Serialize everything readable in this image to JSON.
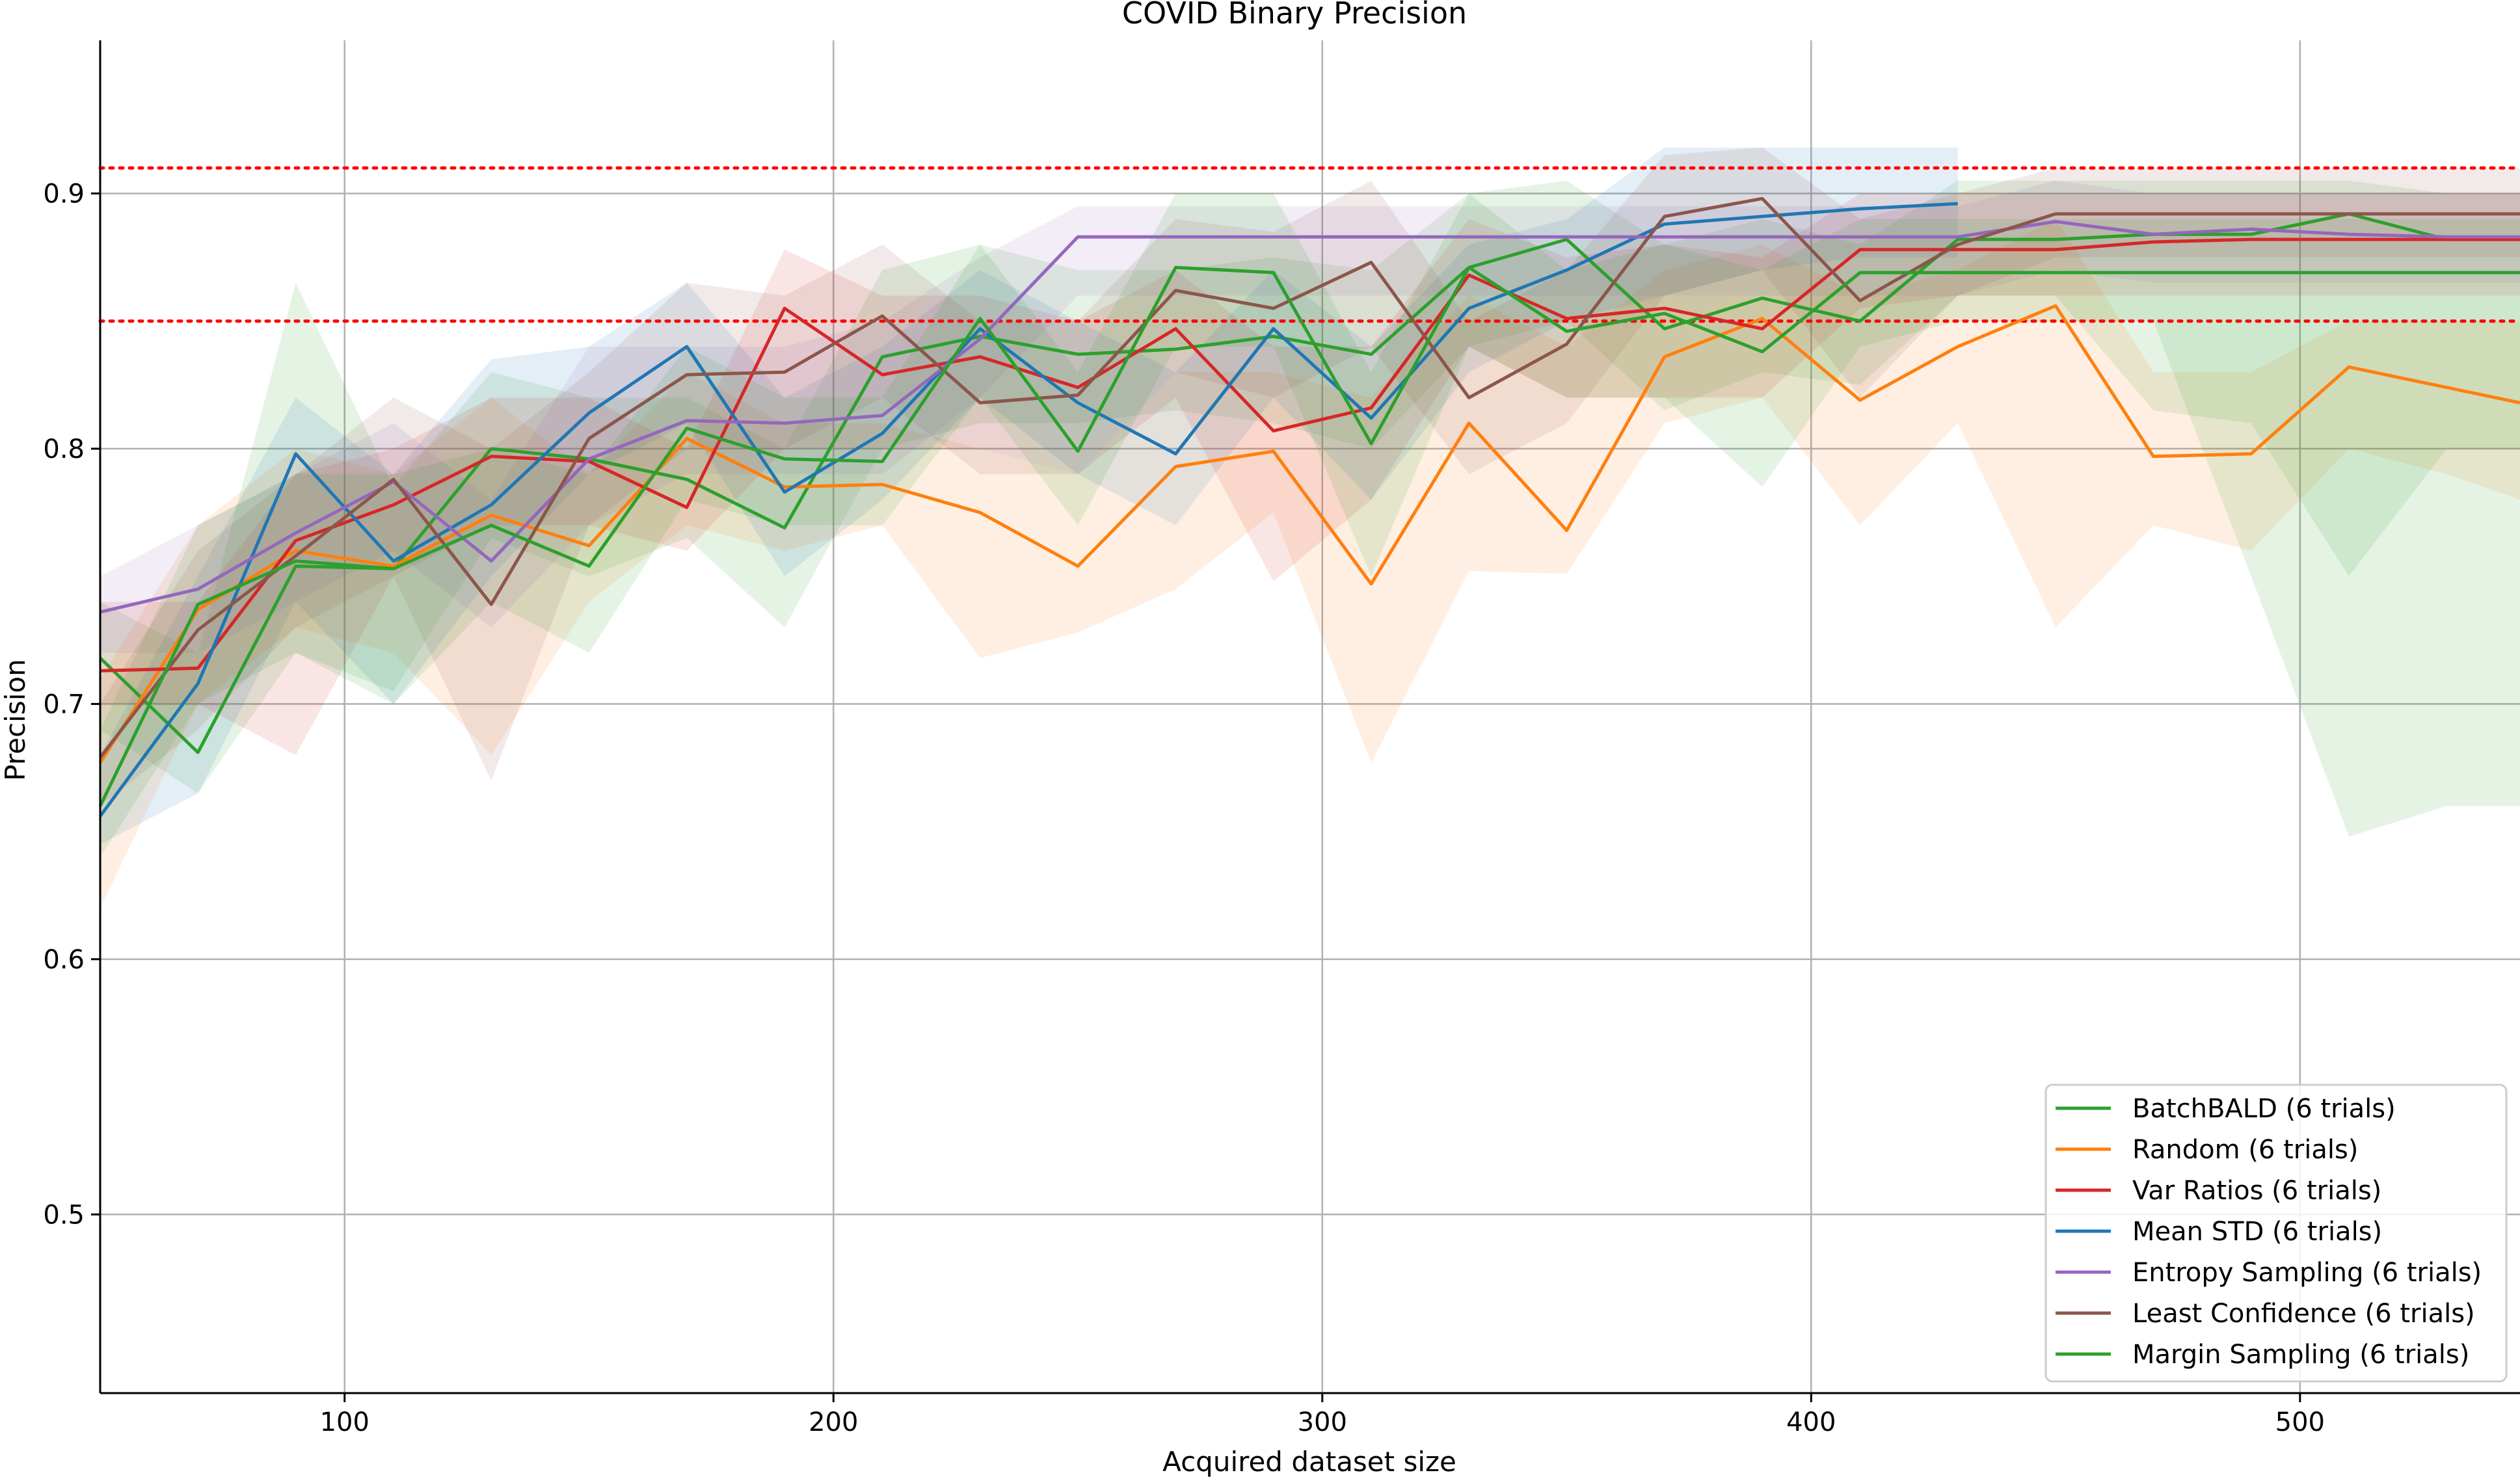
{
  "chart_data": {
    "type": "line",
    "title": "COVID Binary Precision",
    "xlabel": "Acquired dataset size",
    "ylabel": "Precision",
    "xlim": [
      50,
      545
    ],
    "ylim": [
      0.43,
      0.96
    ],
    "xticks": [
      100,
      200,
      300,
      400,
      500
    ],
    "yticks": [
      0.5,
      0.6,
      0.7,
      0.8,
      0.9
    ],
    "xtick_labels": [
      "100",
      "200",
      "300",
      "400",
      "500"
    ],
    "ytick_labels": [
      "0.5",
      "0.6",
      "0.7",
      "0.8",
      "0.9"
    ],
    "grid": true,
    "legend_position": "lower-right",
    "reference_lines": [
      0.91,
      0.85
    ],
    "reference_line_color": "#ff0000",
    "series": [
      {
        "name": "BatchBALD (6 trials)",
        "color": "#2ca02c",
        "x": [
          50,
          70,
          90,
          110,
          130,
          150,
          170,
          190,
          210,
          230,
          250,
          270,
          290,
          310,
          330,
          350,
          370,
          390,
          410,
          430,
          450,
          470,
          490,
          510,
          530,
          545
        ],
        "y": [
          0.718,
          0.681,
          0.754,
          0.753,
          0.8,
          0.796,
          0.788,
          0.769,
          0.836,
          0.844,
          0.837,
          0.839,
          0.844,
          0.837,
          0.871,
          0.882,
          0.847,
          0.859,
          0.85,
          0.882,
          0.882,
          0.884,
          0.884,
          0.892,
          0.882,
          0.882
        ],
        "lower": [
          0.69,
          0.665,
          0.72,
          0.705,
          0.765,
          0.75,
          0.765,
          0.73,
          0.8,
          0.81,
          0.81,
          0.815,
          0.81,
          0.8,
          0.84,
          0.85,
          0.815,
          0.83,
          0.825,
          0.86,
          0.86,
          0.815,
          0.81,
          0.75,
          0.8,
          0.8
        ],
        "upper": [
          0.74,
          0.72,
          0.865,
          0.785,
          0.83,
          0.82,
          0.82,
          0.8,
          0.87,
          0.88,
          0.87,
          0.87,
          0.875,
          0.87,
          0.9,
          0.905,
          0.88,
          0.89,
          0.88,
          0.905,
          0.905,
          0.905,
          0.905,
          0.905,
          0.9,
          0.9
        ]
      },
      {
        "name": "Random (6 trials)",
        "color": "#ff7f0e",
        "x": [
          50,
          70,
          90,
          110,
          130,
          150,
          170,
          190,
          210,
          230,
          250,
          270,
          290,
          310,
          330,
          350,
          370,
          390,
          410,
          430,
          450,
          470,
          490,
          510,
          530,
          545
        ],
        "y": [
          0.677,
          0.737,
          0.76,
          0.754,
          0.774,
          0.762,
          0.804,
          0.785,
          0.786,
          0.775,
          0.754,
          0.793,
          0.799,
          0.747,
          0.81,
          0.768,
          0.836,
          0.851,
          0.819,
          0.84,
          0.856,
          0.797,
          0.798,
          0.832,
          0.824,
          0.818
        ],
        "lower": [
          0.62,
          0.7,
          0.73,
          0.72,
          0.68,
          0.74,
          0.77,
          0.76,
          0.77,
          0.718,
          0.728,
          0.745,
          0.775,
          0.677,
          0.752,
          0.751,
          0.81,
          0.82,
          0.77,
          0.81,
          0.73,
          0.77,
          0.76,
          0.8,
          0.79,
          0.78
        ],
        "upper": [
          0.71,
          0.77,
          0.8,
          0.79,
          0.82,
          0.79,
          0.83,
          0.81,
          0.81,
          0.8,
          0.79,
          0.83,
          0.83,
          0.82,
          0.86,
          0.84,
          0.87,
          0.88,
          0.86,
          0.87,
          0.89,
          0.83,
          0.83,
          0.85,
          0.85,
          0.85
        ]
      },
      {
        "name": "Var Ratios (6 trials)",
        "color": "#d62728",
        "x": [
          50,
          70,
          90,
          110,
          130,
          150,
          170,
          190,
          210,
          230,
          250,
          270,
          290,
          310,
          330,
          350,
          370,
          390,
          410,
          430,
          450,
          470,
          490,
          510,
          530,
          545
        ],
        "y": [
          0.713,
          0.714,
          0.764,
          0.778,
          0.797,
          0.795,
          0.777,
          0.855,
          0.829,
          0.836,
          0.824,
          0.847,
          0.807,
          0.816,
          0.868,
          0.851,
          0.855,
          0.847,
          0.878,
          0.878,
          0.878,
          0.881,
          0.882,
          0.882,
          0.882,
          0.882
        ],
        "lower": [
          0.7,
          0.7,
          0.68,
          0.75,
          0.77,
          0.77,
          0.76,
          0.8,
          0.8,
          0.8,
          0.79,
          0.82,
          0.748,
          0.78,
          0.84,
          0.82,
          0.82,
          0.82,
          0.855,
          0.86,
          0.86,
          0.86,
          0.86,
          0.86,
          0.86,
          0.86
        ],
        "upper": [
          0.74,
          0.74,
          0.79,
          0.8,
          0.82,
          0.82,
          0.8,
          0.878,
          0.86,
          0.86,
          0.85,
          0.87,
          0.84,
          0.84,
          0.89,
          0.875,
          0.88,
          0.875,
          0.9,
          0.9,
          0.9,
          0.9,
          0.9,
          0.9,
          0.9,
          0.9
        ]
      },
      {
        "name": "Mean STD (6 trials)",
        "color": "#1f77b4",
        "x": [
          50,
          70,
          90,
          110,
          130,
          150,
          170,
          190,
          210,
          230,
          250,
          270,
          290,
          310,
          330,
          350,
          370,
          390,
          410,
          430
        ],
        "y": [
          0.656,
          0.708,
          0.798,
          0.756,
          0.778,
          0.814,
          0.84,
          0.783,
          0.806,
          0.847,
          0.818,
          0.798,
          0.847,
          0.812,
          0.855,
          0.87,
          0.888,
          0.891,
          0.894,
          0.896
        ],
        "lower": [
          0.645,
          0.665,
          0.74,
          0.7,
          0.75,
          0.79,
          0.81,
          0.75,
          0.78,
          0.82,
          0.79,
          0.77,
          0.82,
          0.78,
          0.83,
          0.85,
          0.86,
          0.87,
          0.875,
          0.875
        ],
        "upper": [
          0.68,
          0.75,
          0.82,
          0.79,
          0.835,
          0.84,
          0.865,
          0.82,
          0.84,
          0.87,
          0.85,
          0.83,
          0.87,
          0.84,
          0.88,
          0.89,
          0.918,
          0.918,
          0.918,
          0.918
        ]
      },
      {
        "name": "Entropy Sampling (6 trials)",
        "color": "#9467bd",
        "x": [
          50,
          70,
          90,
          110,
          130,
          150,
          170,
          190,
          210,
          230,
          250,
          270,
          290,
          310,
          330,
          350,
          370,
          390,
          410,
          430,
          450,
          470,
          490,
          510,
          530,
          545
        ],
        "y": [
          0.736,
          0.745,
          0.767,
          0.787,
          0.756,
          0.796,
          0.811,
          0.81,
          0.813,
          0.843,
          0.883,
          0.883,
          0.883,
          0.883,
          0.883,
          0.883,
          0.883,
          0.883,
          0.883,
          0.883,
          0.889,
          0.884,
          0.886,
          0.884,
          0.883,
          0.883
        ],
        "lower": [
          0.72,
          0.72,
          0.74,
          0.76,
          0.73,
          0.77,
          0.79,
          0.79,
          0.79,
          0.82,
          0.86,
          0.86,
          0.86,
          0.86,
          0.86,
          0.86,
          0.86,
          0.86,
          0.86,
          0.86,
          0.87,
          0.865,
          0.865,
          0.865,
          0.865,
          0.865
        ],
        "upper": [
          0.75,
          0.77,
          0.79,
          0.81,
          0.78,
          0.84,
          0.84,
          0.84,
          0.85,
          0.875,
          0.895,
          0.895,
          0.895,
          0.895,
          0.895,
          0.895,
          0.895,
          0.895,
          0.895,
          0.895,
          0.905,
          0.9,
          0.9,
          0.9,
          0.9,
          0.9
        ]
      },
      {
        "name": "Least Confidence (6 trials)",
        "color": "#8c564b",
        "x": [
          50,
          70,
          90,
          110,
          130,
          150,
          170,
          190,
          210,
          230,
          250,
          270,
          290,
          310,
          330,
          350,
          370,
          390,
          410,
          430,
          450,
          470,
          490,
          510,
          530,
          545
        ],
        "y": [
          0.679,
          0.729,
          0.758,
          0.788,
          0.739,
          0.804,
          0.829,
          0.83,
          0.852,
          0.818,
          0.821,
          0.862,
          0.855,
          0.873,
          0.82,
          0.841,
          0.891,
          0.898,
          0.858,
          0.88,
          0.892,
          0.892,
          0.892,
          0.892,
          0.892,
          0.892
        ],
        "lower": [
          0.66,
          0.69,
          0.73,
          0.75,
          0.67,
          0.77,
          0.8,
          0.8,
          0.82,
          0.79,
          0.79,
          0.83,
          0.82,
          0.84,
          0.79,
          0.81,
          0.86,
          0.87,
          0.82,
          0.86,
          0.875,
          0.875,
          0.875,
          0.875,
          0.875,
          0.875
        ],
        "upper": [
          0.7,
          0.76,
          0.79,
          0.82,
          0.8,
          0.83,
          0.865,
          0.86,
          0.88,
          0.85,
          0.85,
          0.89,
          0.885,
          0.905,
          0.85,
          0.87,
          0.915,
          0.918,
          0.89,
          0.9,
          0.91,
          0.91,
          0.91,
          0.91,
          0.91,
          0.91
        ]
      },
      {
        "name": "Margin Sampling (6 trials)",
        "color": "#2ca02c",
        "x": [
          50,
          70,
          90,
          110,
          130,
          150,
          170,
          190,
          210,
          230,
          250,
          270,
          290,
          310,
          330,
          350,
          370,
          390,
          410,
          430,
          450,
          470,
          490,
          510,
          530,
          545
        ],
        "y": [
          0.66,
          0.739,
          0.756,
          0.753,
          0.77,
          0.754,
          0.808,
          0.796,
          0.795,
          0.851,
          0.799,
          0.871,
          0.869,
          0.802,
          0.871,
          0.846,
          0.853,
          0.838,
          0.869,
          0.869,
          0.869,
          0.869,
          0.869,
          0.869,
          0.869,
          0.869
        ],
        "lower": [
          0.64,
          0.7,
          0.72,
          0.7,
          0.74,
          0.72,
          0.78,
          0.77,
          0.77,
          0.82,
          0.77,
          0.84,
          0.84,
          0.75,
          0.84,
          0.82,
          0.82,
          0.785,
          0.84,
          0.85,
          0.85,
          0.85,
          0.75,
          0.648,
          0.66,
          0.66
        ],
        "upper": [
          0.69,
          0.77,
          0.79,
          0.79,
          0.8,
          0.79,
          0.84,
          0.82,
          0.82,
          0.88,
          0.83,
          0.9,
          0.9,
          0.83,
          0.9,
          0.87,
          0.88,
          0.87,
          0.89,
          0.89,
          0.89,
          0.89,
          0.89,
          0.89,
          0.89,
          0.89
        ]
      }
    ]
  }
}
